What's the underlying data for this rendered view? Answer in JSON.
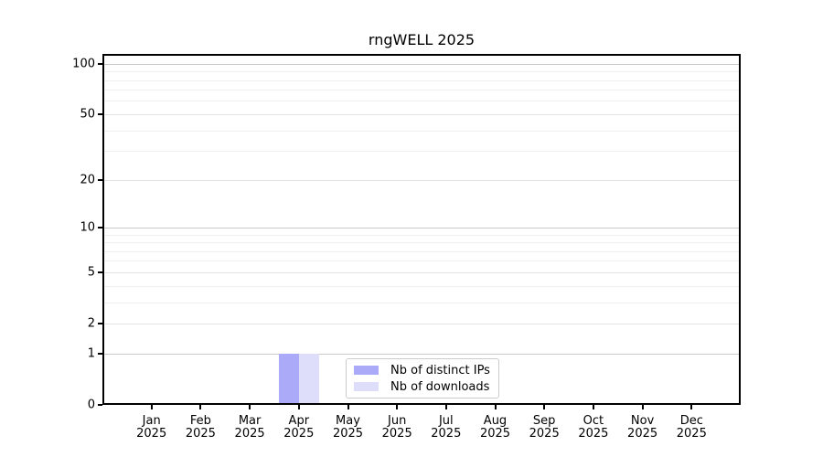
{
  "chart_data": {
    "type": "bar",
    "title": "rngWELL 2025",
    "categories": [
      "Jan",
      "Feb",
      "Mar",
      "Apr",
      "May",
      "Jun",
      "Jul",
      "Aug",
      "Sep",
      "Oct",
      "Nov",
      "Dec"
    ],
    "x_year_line": "2025",
    "series": [
      {
        "name": "Nb of distinct IPs",
        "color": "#aaaaf8",
        "values": [
          0,
          0,
          0,
          1,
          0,
          0,
          0,
          0,
          0,
          0,
          0,
          0
        ]
      },
      {
        "name": "Nb of downloads",
        "color": "#dedefa",
        "values": [
          0,
          0,
          0,
          1,
          0,
          0,
          0,
          0,
          0,
          0,
          0,
          0
        ]
      }
    ],
    "yscale": "log10(1+x)",
    "ylim": [
      0,
      100
    ],
    "y_major_ticks": [
      0,
      1,
      2,
      5,
      10,
      20,
      50,
      100
    ],
    "y_decade_gridlines": [
      1,
      10,
      100
    ],
    "y_mid_gridlines": [
      2,
      5,
      20,
      50
    ],
    "y_minor_gridlines": [
      3,
      4,
      6,
      7,
      8,
      9,
      30,
      40,
      60,
      70,
      80,
      90
    ],
    "grid": "horizontal",
    "legend_position": "lower center",
    "colors": {
      "axis": "#000000",
      "major_grid": "#c8c8c8",
      "mid_grid": "#e2e2e2",
      "minor_grid": "#efefef",
      "background": "#ffffff"
    }
  }
}
